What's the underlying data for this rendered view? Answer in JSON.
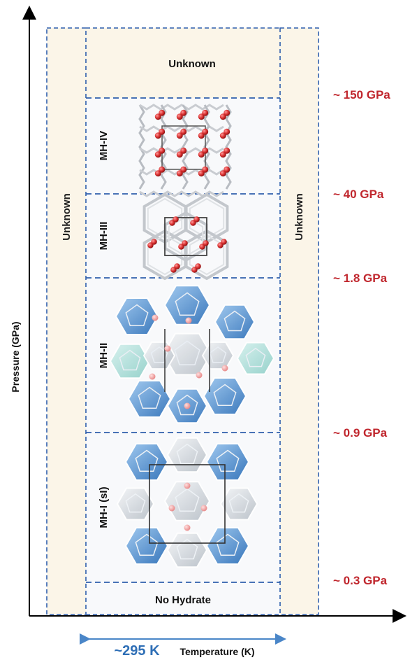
{
  "axes": {
    "y_title": "Pressure (GPa)",
    "x_title": "Temperature (K)"
  },
  "temperature_marker": "~295 K",
  "side_bands": {
    "left_label": "Unknown",
    "right_label": "Unknown"
  },
  "phases": [
    {
      "label": "Unknown"
    },
    {
      "label": "MH-IV"
    },
    {
      "label": "MH-III"
    },
    {
      "label": "MH-II"
    },
    {
      "label": "MH-I (sI)"
    },
    {
      "label": "No Hydrate"
    }
  ],
  "pressure_boundaries": [
    "~ 150 GPa",
    "~ 40 GPa",
    "~ 1.8 GPa",
    "~ 0.9 GPa",
    "~ 0.3 GPa"
  ],
  "colors": {
    "dashed_line": "#2f5fad",
    "band_fill": "#fbf5e8",
    "pressure_text": "#c0262d",
    "temperature_text": "#2f6fb6",
    "cage_blue": "#3b7fc9",
    "cage_grey": "#d9dde2",
    "oxygen_red": "#d93030"
  }
}
